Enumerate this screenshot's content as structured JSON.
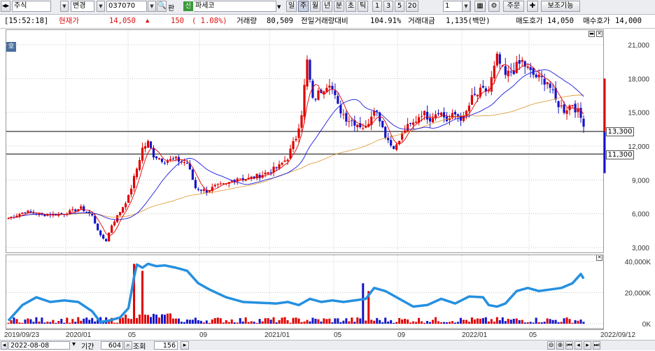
{
  "toolbar": {
    "market_type": "주식",
    "change_mode": "변경",
    "code": "037070",
    "ticker_tag": "신",
    "name": "파세코",
    "periods": [
      "일",
      "주",
      "월",
      "년",
      "분",
      "초",
      "틱"
    ],
    "active_period": "주",
    "intervals": [
      "1",
      "3",
      "5",
      "20"
    ],
    "interval_value": "1",
    "order_label": "주문",
    "assist_label": "보조기능",
    "pan_label": "판"
  },
  "quote": {
    "time": "[15:52:18]",
    "price_label": "현재가",
    "price": "14,050",
    "arrow": "▲",
    "change": "150",
    "change_pct": "( 1.08%)",
    "volume_label": "거래량",
    "volume": "80,509",
    "prev_ratio_label": "전일거래량대비",
    "prev_ratio": "104.91%",
    "amount_label": "거래대금",
    "amount": "1,135(백만)",
    "ask_label": "매도호가",
    "ask": "14,050",
    "bid_label": "매수호가",
    "bid": "14,000"
  },
  "price_panel_tag": "호",
  "colors": {
    "up": "#e00000",
    "down": "#1414c8",
    "ma_short": "#e00000",
    "ma_mid": "#1a1ae0",
    "ma_long": "#e0a040",
    "volume_line": "#2590e0"
  },
  "chart_data": [
    {
      "type": "candlestick",
      "title": "",
      "x_tick_labels": [
        "2019/09/23",
        "2020/01",
        "05",
        "09",
        "2021/01",
        "05",
        "09",
        "2022/01",
        "05",
        "2022/09/12"
      ],
      "y_tick_labels": [
        "21,000",
        "18,000",
        "15,000",
        "12,000",
        "9,000",
        "6,000",
        "3,000"
      ],
      "ylim": [
        2700,
        21600
      ],
      "horizontal_levels": [
        {
          "value": 13300,
          "label": "13,300"
        },
        {
          "value": 11300,
          "label": "11,300"
        }
      ],
      "series_anchors_close": [
        [
          0,
          5600
        ],
        [
          6,
          6200
        ],
        [
          12,
          5900
        ],
        [
          20,
          6000
        ],
        [
          26,
          6500
        ],
        [
          30,
          5800
        ],
        [
          33,
          4000
        ],
        [
          35,
          3600
        ],
        [
          37,
          5000
        ],
        [
          40,
          6200
        ],
        [
          43,
          7500
        ],
        [
          46,
          10000
        ],
        [
          48,
          11800
        ],
        [
          50,
          12300
        ],
        [
          52,
          11200
        ],
        [
          56,
          10700
        ],
        [
          60,
          10800
        ],
        [
          64,
          10500
        ],
        [
          67,
          8300
        ],
        [
          71,
          8000
        ],
        [
          74,
          8400
        ],
        [
          78,
          8600
        ],
        [
          82,
          9200
        ],
        [
          86,
          9100
        ],
        [
          90,
          9400
        ],
        [
          94,
          9800
        ],
        [
          97,
          10200
        ],
        [
          100,
          11000
        ],
        [
          103,
          12800
        ],
        [
          105,
          15000
        ],
        [
          107,
          19500
        ],
        [
          109,
          16000
        ],
        [
          112,
          17000
        ],
        [
          115,
          17800
        ],
        [
          118,
          15500
        ],
        [
          121,
          14500
        ],
        [
          125,
          14000
        ],
        [
          128,
          13600
        ],
        [
          131,
          15500
        ],
        [
          133,
          14500
        ],
        [
          135,
          13000
        ],
        [
          137,
          12100
        ],
        [
          139,
          12000
        ],
        [
          142,
          13500
        ],
        [
          145,
          14000
        ],
        [
          148,
          15000
        ],
        [
          151,
          14500
        ],
        [
          154,
          15200
        ],
        [
          157,
          14300
        ],
        [
          160,
          14800
        ],
        [
          163,
          14400
        ],
        [
          166,
          16200
        ],
        [
          169,
          16800
        ],
        [
          172,
          17000
        ],
        [
          175,
          19800
        ],
        [
          178,
          18200
        ],
        [
          181,
          18800
        ],
        [
          184,
          19500
        ],
        [
          187,
          18500
        ],
        [
          190,
          18000
        ],
        [
          193,
          17800
        ],
        [
          196,
          16000
        ],
        [
          199,
          15200
        ],
        [
          202,
          15800
        ],
        [
          205,
          14500
        ],
        [
          206,
          14050
        ]
      ],
      "moving_averages": [
        "5",
        "20",
        "60"
      ],
      "note_last_close": 14050
    },
    {
      "type": "bar",
      "title": "",
      "y_tick_labels": [
        "40,000K",
        "20,000K",
        "0K"
      ],
      "ylim": [
        0,
        41000
      ],
      "volume_spikes": [
        [
          45,
          38500
        ],
        [
          48,
          34000
        ],
        [
          127,
          26000
        ],
        [
          129,
          21000
        ]
      ],
      "volume_ma_line": [
        [
          0,
          2000
        ],
        [
          5,
          12000
        ],
        [
          10,
          17000
        ],
        [
          15,
          14000
        ],
        [
          20,
          15000
        ],
        [
          25,
          14000
        ],
        [
          30,
          8000
        ],
        [
          33,
          1000
        ],
        [
          36,
          2000
        ],
        [
          40,
          4000
        ],
        [
          43,
          10000
        ],
        [
          45,
          30000
        ],
        [
          46,
          38000
        ],
        [
          48,
          36000
        ],
        [
          50,
          38500
        ],
        [
          53,
          37000
        ],
        [
          56,
          37500
        ],
        [
          60,
          36000
        ],
        [
          64,
          34000
        ],
        [
          68,
          26000
        ],
        [
          72,
          22000
        ],
        [
          78,
          17000
        ],
        [
          84,
          14000
        ],
        [
          90,
          13500
        ],
        [
          96,
          13000
        ],
        [
          100,
          14000
        ],
        [
          104,
          12000
        ],
        [
          108,
          16000
        ],
        [
          112,
          14000
        ],
        [
          116,
          15000
        ],
        [
          120,
          14000
        ],
        [
          124,
          15000
        ],
        [
          128,
          16000
        ],
        [
          131,
          23000
        ],
        [
          135,
          21000
        ],
        [
          140,
          16000
        ],
        [
          145,
          11000
        ],
        [
          150,
          12000
        ],
        [
          155,
          16000
        ],
        [
          160,
          13000
        ],
        [
          165,
          17500
        ],
        [
          170,
          17000
        ],
        [
          172,
          12000
        ],
        [
          175,
          11000
        ],
        [
          178,
          13000
        ],
        [
          182,
          21000
        ],
        [
          186,
          23000
        ],
        [
          190,
          21000
        ],
        [
          194,
          22000
        ],
        [
          198,
          23000
        ],
        [
          202,
          26000
        ],
        [
          205,
          32000
        ],
        [
          206,
          29000
        ]
      ]
    }
  ],
  "bottom": {
    "date": "2022-08-08",
    "period_label": "기간",
    "period_value": "604",
    "query_label": "조회",
    "count_value": "156"
  }
}
